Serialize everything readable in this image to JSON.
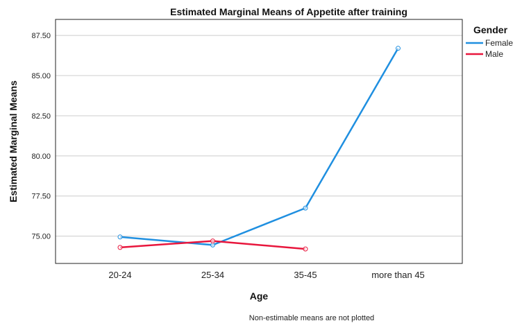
{
  "chart_data": {
    "type": "line",
    "title": "Estimated Marginal Means of Appetite after training",
    "xlabel": "Age",
    "ylabel": "Estimated Marginal Means",
    "categories": [
      "20-24",
      "25-34",
      "35-45",
      "more than 45"
    ],
    "yticks": [
      "75.00",
      "77.50",
      "80.00",
      "82.50",
      "85.00",
      "87.50"
    ],
    "ylim": [
      73.3,
      88.5
    ],
    "grid": true,
    "legend": {
      "title": "Gender",
      "placement": "right-top"
    },
    "series": [
      {
        "name": "Female",
        "color": "#1f8fe0",
        "values": [
          74.95,
          74.45,
          76.75,
          86.7
        ]
      },
      {
        "name": "Male",
        "color": "#e8163c",
        "values": [
          74.3,
          74.7,
          74.2,
          null
        ]
      }
    ],
    "footnote": "Non-estimable means are not plotted"
  }
}
